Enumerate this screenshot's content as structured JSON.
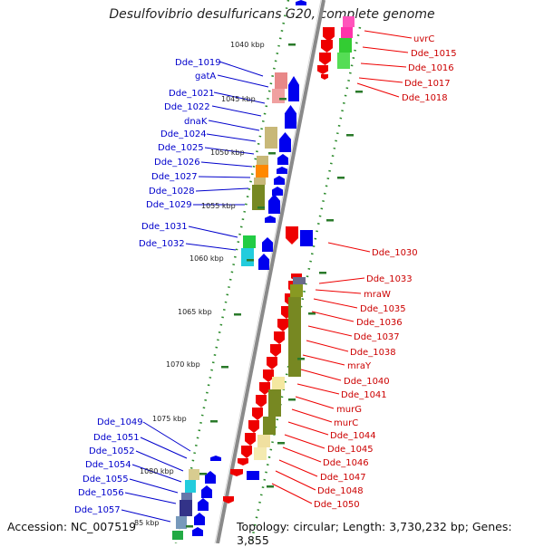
{
  "title": "Desulfovibrio desulfuricans G20, complete genome",
  "accession": "Accession: NC_007519",
  "topology": "Topology: circular; Length: 3,730,232 bp; Genes: 3,855",
  "colors": {
    "forward": "#0000ee",
    "reverse": "#ee0000",
    "backbone": "#808080",
    "tick": "#2a7a2a"
  },
  "kbp_marks": [
    "1040 kbp",
    "1045 kbp",
    "1050 kbp",
    "1055 kbp",
    "1060 kbp",
    "1065 kbp",
    "1070 kbp",
    "1075 kbp",
    "1080 kbp",
    "85 kbp"
  ],
  "left_genes": [
    "Dde_1019",
    "gatA",
    "Dde_1021",
    "Dde_1022",
    "dnaK",
    "Dde_1024",
    "Dde_1025",
    "Dde_1026",
    "Dde_1027",
    "Dde_1028",
    "Dde_1029",
    "Dde_1031",
    "Dde_1032",
    "Dde_1049",
    "Dde_1051",
    "Dde_1052",
    "Dde_1054",
    "Dde_1055",
    "Dde_1056",
    "Dde_1057"
  ],
  "right_genes": [
    "uvrC",
    "Dde_1015",
    "Dde_1016",
    "Dde_1017",
    "Dde_1018",
    "Dde_1030",
    "Dde_1033",
    "mraW",
    "Dde_1035",
    "Dde_1036",
    "Dde_1037",
    "Dde_1038",
    "mraY",
    "Dde_1040",
    "Dde_1041",
    "murG",
    "murC",
    "Dde_1044",
    "Dde_1045",
    "Dde_1046",
    "Dde_1047",
    "Dde_1048",
    "Dde_1050"
  ]
}
